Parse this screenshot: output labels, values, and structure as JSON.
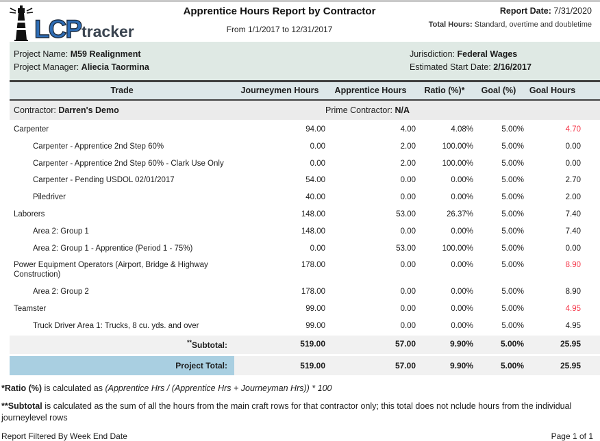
{
  "header": {
    "logo_lcp": "LCP",
    "logo_tracker": "tracker",
    "title": "Apprentice Hours Report by Contractor",
    "date_range": "From 1/1/2017 to 12/31/2017",
    "report_date_label": "Report Date:",
    "report_date": "7/31/2020",
    "total_hours_label": "Total Hours:",
    "total_hours": "Standard, overtime and doubletime"
  },
  "project_info": {
    "project_name_label": "Project Name:",
    "project_name": "M59 Realignment",
    "project_manager_label": "Project Manager:",
    "project_manager": "Aliecia Taormina",
    "jurisdiction_label": "Jurisdiction:",
    "jurisdiction": "Federal Wages",
    "estimated_start_label": "Estimated Start Date:",
    "estimated_start": "2/16/2017"
  },
  "table": {
    "columns": [
      "Trade",
      "Journeymen Hours",
      "Apprentice Hours",
      "Ratio (%)*",
      "Goal (%)",
      "Goal Hours"
    ],
    "contractor_label": "Contractor:",
    "contractor": "Darren's Demo",
    "prime_contractor_label": "Prime Contractor:",
    "prime_contractor": "N/A",
    "rows": [
      {
        "trade": "Carpenter",
        "indent": 0,
        "journeymen": "94.00",
        "apprentice": "4.00",
        "ratio": "4.08%",
        "goal": "5.00%",
        "goal_hours": "4.70",
        "goal_hours_red": true
      },
      {
        "trade": "Carpenter - Apprentice 2nd Step 60%",
        "indent": 1,
        "journeymen": "0.00",
        "apprentice": "2.00",
        "ratio": "100.00%",
        "goal": "5.00%",
        "goal_hours": "0.00",
        "goal_hours_red": false
      },
      {
        "trade": "Carpenter - Apprentice 2nd Step 60% - Clark Use Only",
        "indent": 1,
        "journeymen": "0.00",
        "apprentice": "2.00",
        "ratio": "100.00%",
        "goal": "5.00%",
        "goal_hours": "0.00",
        "goal_hours_red": false
      },
      {
        "trade": "Carpenter - Pending USDOL 02/01/2017",
        "indent": 1,
        "journeymen": "54.00",
        "apprentice": "0.00",
        "ratio": "0.00%",
        "goal": "5.00%",
        "goal_hours": "2.70",
        "goal_hours_red": false
      },
      {
        "trade": "Piledriver",
        "indent": 1,
        "journeymen": "40.00",
        "apprentice": "0.00",
        "ratio": "0.00%",
        "goal": "5.00%",
        "goal_hours": "2.00",
        "goal_hours_red": false
      },
      {
        "trade": "Laborers",
        "indent": 0,
        "journeymen": "148.00",
        "apprentice": "53.00",
        "ratio": "26.37%",
        "goal": "5.00%",
        "goal_hours": "7.40",
        "goal_hours_red": false
      },
      {
        "trade": "Area 2: Group 1",
        "indent": 1,
        "journeymen": "148.00",
        "apprentice": "0.00",
        "ratio": "0.00%",
        "goal": "5.00%",
        "goal_hours": "7.40",
        "goal_hours_red": false
      },
      {
        "trade": "Area 2: Group 1 - Apprentice (Period 1 - 75%)",
        "indent": 1,
        "journeymen": "0.00",
        "apprentice": "53.00",
        "ratio": "100.00%",
        "goal": "5.00%",
        "goal_hours": "0.00",
        "goal_hours_red": false
      },
      {
        "trade": "Power Equipment Operators (Airport, Bridge & Highway Construction)",
        "indent": 0,
        "journeymen": "178.00",
        "apprentice": "0.00",
        "ratio": "0.00%",
        "goal": "5.00%",
        "goal_hours": "8.90",
        "goal_hours_red": true
      },
      {
        "trade": "Area 2: Group 2",
        "indent": 1,
        "journeymen": "178.00",
        "apprentice": "0.00",
        "ratio": "0.00%",
        "goal": "5.00%",
        "goal_hours": "8.90",
        "goal_hours_red": false
      },
      {
        "trade": "Teamster",
        "indent": 0,
        "journeymen": "99.00",
        "apprentice": "0.00",
        "ratio": "0.00%",
        "goal": "5.00%",
        "goal_hours": "4.95",
        "goal_hours_red": true
      },
      {
        "trade": "Truck Driver Area 1: Trucks, 8 cu. yds. and over",
        "indent": 1,
        "journeymen": "99.00",
        "apprentice": "0.00",
        "ratio": "0.00%",
        "goal": "5.00%",
        "goal_hours": "4.95",
        "goal_hours_red": false
      }
    ],
    "subtotal": {
      "sup": "**",
      "label": "Subtotal:",
      "journeymen": "519.00",
      "apprentice": "57.00",
      "ratio": "9.90%",
      "goal": "5.00%",
      "goal_hours": "25.95"
    },
    "project_total": {
      "label": "Project Total:",
      "journeymen": "519.00",
      "apprentice": "57.00",
      "ratio": "9.90%",
      "goal": "5.00%",
      "goal_hours": "25.95"
    }
  },
  "footnotes": {
    "ratio_term": "*Ratio (%)",
    "ratio_text": " is calculated as ",
    "ratio_formula": "(Apprentice Hrs / (Apprentice Hrs + Journeyman Hrs)) * 100",
    "subtotal_term": "**Subtotal",
    "subtotal_text": " is calculated as the sum of all the hours from the main craft rows for that contractor only; this total does not nclude hours from the individual journeylevel rows"
  },
  "footer": {
    "filter_note": "Report Filtered By Week End Date",
    "page": "Page 1 of 1"
  },
  "colors": {
    "logo_blue": "#2e6db6",
    "project_bar_bg": "#dfe9e4",
    "table_header_bg": "#dde7e9",
    "contractor_row_bg": "#ebebeb",
    "subtotal_row_bg": "#f1f1f1",
    "project_total_bar_blue": "#a9cfe1",
    "negative_value_red": "#f5394b"
  }
}
